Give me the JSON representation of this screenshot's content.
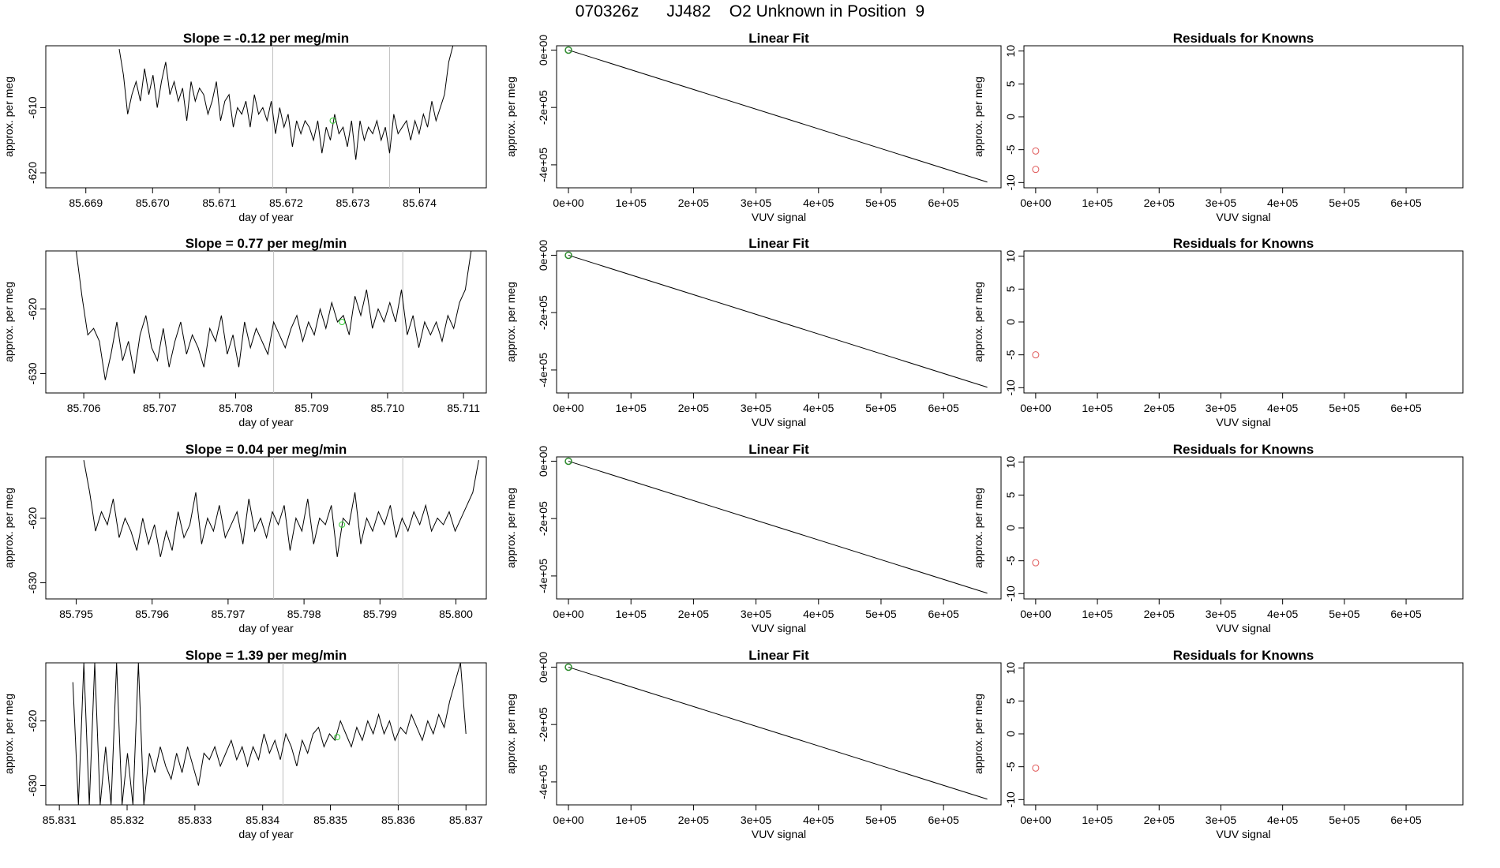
{
  "page_title": "070326z      JJ482    O2 Unknown in Position  9",
  "chart_data": [
    {
      "type": "line",
      "title": "Slope =  -0.12  per meg/min",
      "xlabel": "day of year",
      "ylabel": "approx. per meg",
      "xlim": [
        85.6684,
        85.675
      ],
      "ylim": [
        -622.3,
        -600.5
      ],
      "xticks": [
        "85.669",
        "85.670",
        "85.671",
        "85.672",
        "85.673",
        "85.674"
      ],
      "yticks": [
        "-610",
        "-620"
      ],
      "vlines": [
        85.6718,
        85.67355
      ],
      "marker": {
        "x": 85.6727,
        "y": -612.0
      },
      "series": {
        "x_start": 85.6695,
        "x_end": 85.6745,
        "base": -609.5,
        "amp": 3.0,
        "values": [
          -601,
          -605,
          -611,
          -608,
          -606,
          -609,
          -604,
          -608,
          -605,
          -610,
          -606,
          -603,
          -608,
          -606,
          -609,
          -607,
          -612,
          -606,
          -609,
          -607,
          -608,
          -611,
          -609,
          -606,
          -612,
          -609,
          -608,
          -613,
          -610,
          -611,
          -609,
          -613,
          -608,
          -611,
          -610,
          -612,
          -609,
          -614,
          -610,
          -613,
          -611,
          -616,
          -612,
          -614,
          -612,
          -613,
          -615,
          -612,
          -617,
          -613,
          -615,
          -611,
          -614,
          -613,
          -616,
          -612,
          -618,
          -612,
          -615,
          -613,
          -614,
          -612,
          -615,
          -613,
          -617,
          -611,
          -614,
          -613,
          -612,
          -615,
          -612,
          -614,
          -611,
          -613,
          -609,
          -612,
          -610,
          -608,
          -603,
          -600
        ]
      }
    },
    {
      "type": "line",
      "title": "Linear Fit",
      "xlabel": "VUV signal",
      "ylabel": "approx. per meg",
      "xlim": [
        -19000,
        692000
      ],
      "ylim": [
        -480000,
        15000
      ],
      "xticks": [
        "0e+00",
        "1e+05",
        "2e+05",
        "3e+05",
        "4e+05",
        "5e+05",
        "6e+05"
      ],
      "yticks": [
        "0e+00",
        "-2e+05",
        "-4e+05"
      ],
      "line": [
        [
          0,
          0
        ],
        [
          670000,
          -460000
        ]
      ],
      "points": [
        [
          0,
          0
        ]
      ]
    },
    {
      "type": "scatter",
      "title": "Residuals for Knowns",
      "xlabel": "VUV signal",
      "ylabel": "approx. per meg",
      "xlim": [
        -19000,
        692000
      ],
      "ylim": [
        -10.8,
        10.8
      ],
      "xticks": [
        "0e+00",
        "1e+05",
        "2e+05",
        "3e+05",
        "4e+05",
        "5e+05",
        "6e+05"
      ],
      "yticks": [
        "10",
        "5",
        "0",
        "-5",
        "-10"
      ],
      "points": [
        [
          0,
          -5.2
        ],
        [
          0,
          -8.0
        ]
      ]
    },
    {
      "type": "line",
      "title": "Slope =  0.77  per meg/min",
      "xlabel": "day of year",
      "ylabel": "approx. per meg",
      "xlim": [
        85.7055,
        85.7113
      ],
      "ylim": [
        -633.0,
        -611.0
      ],
      "xticks": [
        "85.706",
        "85.707",
        "85.708",
        "85.709",
        "85.710",
        "85.711"
      ],
      "yticks": [
        "-620",
        "-630"
      ],
      "vlines": [
        85.7085,
        85.7102
      ],
      "marker": {
        "x": 85.7094,
        "y": -622.0
      },
      "series": {
        "x_start": 85.7059,
        "x_end": 85.7111,
        "values": [
          -611,
          -618,
          -624,
          -623,
          -625,
          -631,
          -627,
          -622,
          -628,
          -625,
          -630,
          -624,
          -621,
          -626,
          -628,
          -623,
          -629,
          -625,
          -622,
          -627,
          -624,
          -626,
          -629,
          -623,
          -625,
          -621,
          -627,
          -624,
          -629,
          -622,
          -626,
          -623,
          -625,
          -627,
          -622,
          -624,
          -626,
          -623,
          -621,
          -625,
          -622,
          -624,
          -620,
          -623,
          -619,
          -622,
          -621,
          -624,
          -618,
          -621,
          -617,
          -623,
          -620,
          -622,
          -619,
          -622,
          -617,
          -624,
          -621,
          -626,
          -622,
          -624,
          -622,
          -625,
          -621,
          -623,
          -619,
          -617,
          -611
        ]
      }
    },
    {
      "type": "line",
      "title": "Linear Fit",
      "xlabel": "VUV signal",
      "ylabel": "approx. per meg",
      "xlim": [
        -19000,
        692000
      ],
      "ylim": [
        -480000,
        15000
      ],
      "xticks": [
        "0e+00",
        "1e+05",
        "2e+05",
        "3e+05",
        "4e+05",
        "5e+05",
        "6e+05"
      ],
      "yticks": [
        "0e+00",
        "-2e+05",
        "-4e+05"
      ],
      "line": [
        [
          0,
          0
        ],
        [
          670000,
          -460000
        ]
      ],
      "points": [
        [
          0,
          0
        ]
      ]
    },
    {
      "type": "scatter",
      "title": "Residuals for Knowns",
      "xlabel": "VUV signal",
      "ylabel": "approx. per meg",
      "xlim": [
        -19000,
        692000
      ],
      "ylim": [
        -10.8,
        10.8
      ],
      "xticks": [
        "0e+00",
        "1e+05",
        "2e+05",
        "3e+05",
        "4e+05",
        "5e+05",
        "6e+05"
      ],
      "yticks": [
        "10",
        "5",
        "0",
        "-5",
        "-10"
      ],
      "points": [
        [
          0,
          -5.0
        ]
      ]
    },
    {
      "type": "line",
      "title": "Slope =  0.04  per meg/min",
      "xlabel": "day of year",
      "ylabel": "approx. per meg",
      "xlim": [
        85.7946,
        85.8004
      ],
      "ylim": [
        -632.5,
        -610.5
      ],
      "xticks": [
        "85.795",
        "85.796",
        "85.797",
        "85.798",
        "85.799",
        "85.800"
      ],
      "yticks": [
        "-620",
        "-630"
      ],
      "vlines": [
        85.7976,
        85.7993
      ],
      "marker": {
        "x": 85.7985,
        "y": -621.0
      },
      "series": {
        "x_start": 85.7951,
        "x_end": 85.8003,
        "values": [
          -611,
          -616,
          -622,
          -619,
          -621,
          -617,
          -623,
          -620,
          -622,
          -625,
          -620,
          -624,
          -621,
          -626,
          -622,
          -625,
          -619,
          -623,
          -621,
          -616,
          -624,
          -620,
          -622,
          -618,
          -623,
          -621,
          -619,
          -624,
          -617,
          -622,
          -620,
          -623,
          -619,
          -621,
          -618,
          -625,
          -620,
          -622,
          -617,
          -624,
          -620,
          -621,
          -618,
          -626,
          -620,
          -621,
          -616,
          -624,
          -620,
          -622,
          -619,
          -621,
          -618,
          -623,
          -620,
          -622,
          -619,
          -621,
          -618,
          -622,
          -620,
          -621,
          -619,
          -622,
          -620,
          -618,
          -616,
          -611
        ]
      }
    },
    {
      "type": "line",
      "title": "Linear Fit",
      "xlabel": "VUV signal",
      "ylabel": "approx. per meg",
      "xlim": [
        -19000,
        692000
      ],
      "ylim": [
        -480000,
        15000
      ],
      "xticks": [
        "0e+00",
        "1e+05",
        "2e+05",
        "3e+05",
        "4e+05",
        "5e+05",
        "6e+05"
      ],
      "yticks": [
        "0e+00",
        "-2e+05",
        "-4e+05"
      ],
      "line": [
        [
          0,
          0
        ],
        [
          670000,
          -460000
        ]
      ],
      "points": [
        [
          0,
          0
        ]
      ]
    },
    {
      "type": "scatter",
      "title": "Residuals for Knowns",
      "xlabel": "VUV signal",
      "ylabel": "approx. per meg",
      "xlim": [
        -19000,
        692000
      ],
      "ylim": [
        -10.8,
        10.8
      ],
      "xticks": [
        "0e+00",
        "1e+05",
        "2e+05",
        "3e+05",
        "4e+05",
        "5e+05",
        "6e+05"
      ],
      "yticks": [
        "10",
        "5",
        "0",
        "-5",
        "-10"
      ],
      "points": [
        [
          0,
          -5.3
        ]
      ]
    },
    {
      "type": "line",
      "title": "Slope =  1.39  per meg/min",
      "xlabel": "day of year",
      "ylabel": "approx. per meg",
      "xlim": [
        85.8308,
        85.8373
      ],
      "ylim": [
        -633.0,
        -611.0
      ],
      "xticks": [
        "85.831",
        "85.832",
        "85.833",
        "85.834",
        "85.835",
        "85.836",
        "85.837"
      ],
      "yticks": [
        "-620",
        "-630"
      ],
      "vlines": [
        85.8343,
        85.836
      ],
      "marker": {
        "x": 85.8351,
        "y": -622.5
      },
      "series": {
        "x_start": 85.8312,
        "x_end": 85.837,
        "values": [
          -614,
          -633,
          -611,
          -633,
          -611,
          -633,
          -624,
          -633,
          -611,
          -633,
          -625,
          -633,
          -611,
          -633,
          -625,
          -628,
          -624,
          -627,
          -629,
          -625,
          -628,
          -624,
          -627,
          -630,
          -625,
          -626,
          -624,
          -627,
          -625,
          -623,
          -626,
          -624,
          -627,
          -624,
          -626,
          -622,
          -625,
          -623,
          -626,
          -622,
          -624,
          -627,
          -623,
          -625,
          -622,
          -621,
          -624,
          -622,
          -623,
          -620,
          -622,
          -624,
          -621,
          -623,
          -620,
          -622,
          -619,
          -622,
          -620,
          -623,
          -621,
          -622,
          -619,
          -621,
          -623,
          -620,
          -622,
          -619,
          -621,
          -617,
          -614,
          -611,
          -622
        ]
      }
    },
    {
      "type": "line",
      "title": "Linear Fit",
      "xlabel": "VUV signal",
      "ylabel": "approx. per meg",
      "xlim": [
        -19000,
        692000
      ],
      "ylim": [
        -480000,
        15000
      ],
      "xticks": [
        "0e+00",
        "1e+05",
        "2e+05",
        "3e+05",
        "4e+05",
        "5e+05",
        "6e+05"
      ],
      "yticks": [
        "0e+00",
        "-2e+05",
        "-4e+05"
      ],
      "line": [
        [
          0,
          0
        ],
        [
          670000,
          -460000
        ]
      ],
      "points": [
        [
          0,
          0
        ]
      ]
    },
    {
      "type": "scatter",
      "title": "Residuals for Knowns",
      "xlabel": "VUV signal",
      "ylabel": "approx. per meg",
      "xlim": [
        -19000,
        692000
      ],
      "ylim": [
        -10.8,
        10.8
      ],
      "xticks": [
        "0e+00",
        "1e+05",
        "2e+05",
        "3e+05",
        "4e+05",
        "5e+05",
        "6e+05"
      ],
      "yticks": [
        "10",
        "5",
        "0",
        "-5",
        "-10"
      ],
      "points": [
        [
          0,
          -5.2
        ]
      ]
    }
  ],
  "colors": {
    "line": "#000000",
    "vline": "#bfbfbf",
    "marker": "#33cc33",
    "fit_point": "#2e8b2e",
    "residual": "#e05a5a"
  }
}
